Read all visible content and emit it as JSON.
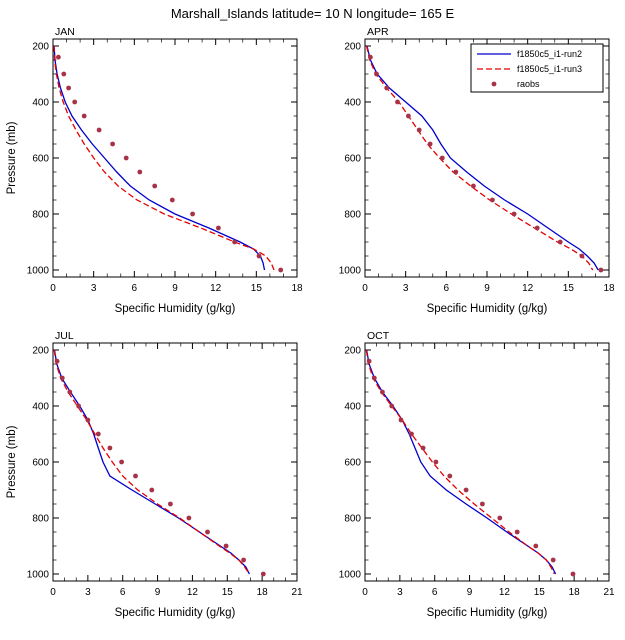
{
  "title": "Marshall_Islands  latitude= 10 N longitude= 165 E",
  "chart_data": {
    "type": "line",
    "xlabel": "Specific Humidity (g/kg)",
    "ylabel": "Pressure (mb)",
    "y_ticks": [
      200,
      400,
      600,
      800,
      1000
    ],
    "y_range": [
      175,
      1025
    ],
    "legend_position": "top-right inside APR panel",
    "grid": "off",
    "series": [
      {
        "key": "run2",
        "label": "f1850c5_i1-run2",
        "type": "line",
        "color": "#0000cd",
        "dash": ""
      },
      {
        "key": "run3",
        "label": "f1850c5_i1-run3",
        "type": "line",
        "color": "#e60000",
        "dash": "6,3"
      },
      {
        "key": "raobs",
        "label": "raobs",
        "type": "marker",
        "color": "#a83248",
        "dash": ""
      }
    ],
    "panels": [
      {
        "label": "JAN",
        "x_range": [
          0,
          18
        ],
        "x_ticks": [
          0,
          3,
          6,
          9,
          12,
          15,
          18
        ],
        "show_ylabel": true,
        "show_legend": false,
        "run2": {
          "pressure": [
            200,
            250,
            300,
            350,
            400,
            450,
            500,
            550,
            600,
            650,
            700,
            750,
            800,
            850,
            900,
            925,
            950,
            975,
            1000
          ],
          "q": [
            0.08,
            0.15,
            0.3,
            0.55,
            0.9,
            1.4,
            2.1,
            2.9,
            3.8,
            4.7,
            5.7,
            7.1,
            9.0,
            11.5,
            13.8,
            14.8,
            15.3,
            15.5,
            15.6
          ]
        },
        "run3": {
          "pressure": [
            200,
            250,
            300,
            350,
            400,
            450,
            500,
            550,
            600,
            650,
            700,
            750,
            800,
            850,
            900,
            925,
            950,
            975,
            1000
          ],
          "q": [
            0.07,
            0.12,
            0.25,
            0.45,
            0.75,
            1.15,
            1.7,
            2.3,
            3.0,
            3.8,
            4.8,
            6.2,
            8.2,
            10.9,
            13.4,
            14.8,
            15.7,
            16.1,
            16.3
          ]
        },
        "raobs": {
          "pressure": [
            240,
            300,
            350,
            400,
            450,
            500,
            550,
            600,
            650,
            700,
            750,
            800,
            850,
            900,
            950,
            1000
          ],
          "q": [
            0.4,
            0.8,
            1.15,
            1.6,
            2.3,
            3.4,
            4.4,
            5.4,
            6.4,
            7.5,
            8.8,
            10.3,
            12.2,
            13.4,
            15.2,
            16.8
          ]
        }
      },
      {
        "label": "APR",
        "x_range": [
          0,
          18
        ],
        "x_ticks": [
          0,
          3,
          6,
          9,
          12,
          15,
          18
        ],
        "show_ylabel": false,
        "show_legend": true,
        "run2": {
          "pressure": [
            200,
            250,
            300,
            350,
            400,
            450,
            500,
            550,
            600,
            650,
            700,
            750,
            800,
            850,
            900,
            925,
            950,
            975,
            1000
          ],
          "q": [
            0.15,
            0.4,
            0.9,
            1.8,
            3.0,
            4.2,
            5.0,
            5.6,
            6.3,
            7.5,
            8.8,
            10.3,
            12.0,
            13.5,
            15.0,
            15.8,
            16.4,
            16.9,
            17.2
          ]
        },
        "run3": {
          "pressure": [
            200,
            250,
            300,
            350,
            400,
            450,
            500,
            550,
            600,
            650,
            700,
            750,
            800,
            850,
            900,
            925,
            950,
            975,
            1000
          ],
          "q": [
            0.12,
            0.35,
            0.8,
            1.6,
            2.5,
            3.2,
            3.9,
            4.6,
            5.5,
            6.5,
            7.8,
            9.2,
            10.8,
            12.5,
            14.2,
            15.2,
            16.0,
            16.5,
            16.8
          ]
        },
        "raobs": {
          "pressure": [
            240,
            300,
            350,
            400,
            450,
            500,
            550,
            600,
            650,
            700,
            750,
            800,
            850,
            900,
            950,
            1000
          ],
          "q": [
            0.4,
            0.85,
            1.6,
            2.4,
            3.2,
            4.0,
            4.8,
            5.7,
            6.7,
            8.0,
            9.4,
            11.0,
            12.7,
            14.4,
            16.0,
            17.4
          ]
        }
      },
      {
        "label": "JUL",
        "x_range": [
          0,
          21
        ],
        "x_ticks": [
          0,
          3,
          6,
          9,
          12,
          15,
          18,
          21
        ],
        "show_ylabel": true,
        "show_legend": false,
        "run2": {
          "pressure": [
            200,
            250,
            300,
            350,
            400,
            450,
            500,
            550,
            600,
            650,
            700,
            750,
            800,
            850,
            900,
            925,
            950,
            975,
            1000
          ],
          "q": [
            0.13,
            0.33,
            0.75,
            1.5,
            2.3,
            3.0,
            3.5,
            3.9,
            4.3,
            4.9,
            6.8,
            8.8,
            10.8,
            12.6,
            14.4,
            15.3,
            16.0,
            16.6,
            16.9
          ]
        },
        "run3": {
          "pressure": [
            200,
            250,
            300,
            350,
            400,
            450,
            500,
            550,
            600,
            650,
            700,
            750,
            800,
            850,
            900,
            925,
            950,
            975,
            1000
          ],
          "q": [
            0.1,
            0.28,
            0.65,
            1.3,
            2.1,
            2.9,
            3.6,
            4.3,
            5.1,
            6.0,
            7.3,
            9.0,
            10.9,
            12.6,
            14.3,
            15.2,
            16.0,
            16.5,
            16.9
          ]
        },
        "raobs": {
          "pressure": [
            240,
            300,
            350,
            400,
            450,
            500,
            550,
            600,
            650,
            700,
            750,
            800,
            850,
            900,
            950,
            1000
          ],
          "q": [
            0.35,
            0.8,
            1.45,
            2.2,
            3.0,
            3.9,
            4.9,
            5.9,
            7.1,
            8.5,
            10.1,
            11.7,
            13.3,
            14.9,
            16.4,
            18.1
          ]
        }
      },
      {
        "label": "OCT",
        "x_range": [
          0,
          21
        ],
        "x_ticks": [
          0,
          3,
          6,
          9,
          12,
          15,
          18,
          21
        ],
        "show_ylabel": false,
        "show_legend": false,
        "run2": {
          "pressure": [
            200,
            250,
            300,
            350,
            400,
            450,
            500,
            550,
            600,
            650,
            700,
            750,
            800,
            850,
            900,
            925,
            950,
            975,
            1000
          ],
          "q": [
            0.14,
            0.35,
            0.8,
            1.5,
            2.4,
            3.2,
            3.8,
            4.3,
            4.8,
            5.6,
            7.0,
            8.7,
            10.5,
            12.2,
            14.0,
            14.9,
            15.6,
            16.1,
            16.4
          ]
        },
        "run3": {
          "pressure": [
            200,
            250,
            300,
            350,
            400,
            450,
            500,
            550,
            600,
            650,
            700,
            750,
            800,
            850,
            900,
            925,
            950,
            975,
            1000
          ],
          "q": [
            0.11,
            0.3,
            0.7,
            1.4,
            2.3,
            3.2,
            4.0,
            4.9,
            5.8,
            6.8,
            8.0,
            9.4,
            10.9,
            12.4,
            14.0,
            14.9,
            15.6,
            16.0,
            16.3
          ]
        },
        "raobs": {
          "pressure": [
            240,
            300,
            350,
            400,
            450,
            500,
            550,
            600,
            650,
            700,
            750,
            800,
            850,
            900,
            950,
            1000
          ],
          "q": [
            0.35,
            0.8,
            1.5,
            2.3,
            3.1,
            4.0,
            5.0,
            6.1,
            7.3,
            8.7,
            10.1,
            11.6,
            13.1,
            14.7,
            16.2,
            17.9
          ]
        }
      }
    ]
  }
}
